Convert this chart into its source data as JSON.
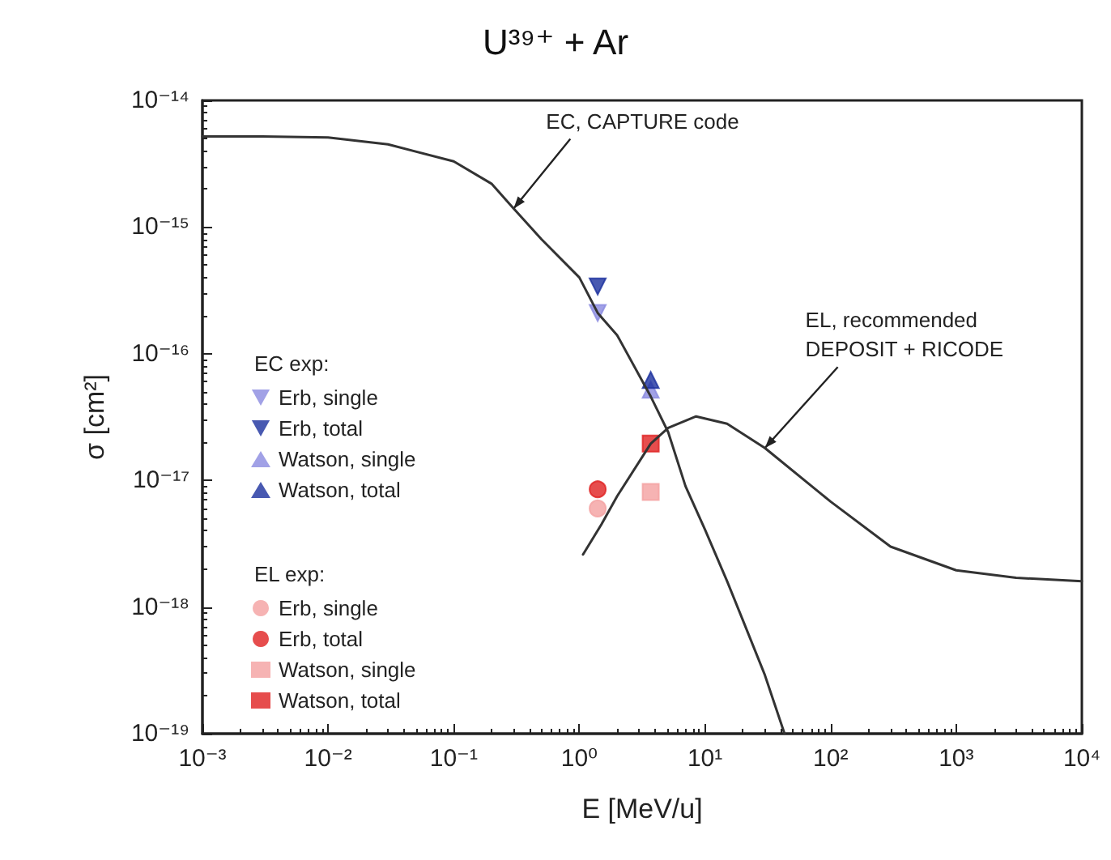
{
  "chart_data": {
    "type": "scatter",
    "title": "U³⁹⁺ + Ar",
    "xlabel": "E [MeV/u]",
    "ylabel": "σ [cm²]",
    "log": "xy",
    "xlim": [
      0.001,
      10000
    ],
    "xticks": [
      {
        "value": 0.001,
        "label": "10⁻³"
      },
      {
        "value": 0.01,
        "label": "10⁻²"
      },
      {
        "value": 0.1,
        "label": "10⁻¹"
      },
      {
        "value": 1,
        "label": "10⁰"
      },
      {
        "value": 10,
        "label": "10¹"
      },
      {
        "value": 100,
        "label": "10²"
      },
      {
        "value": 1000,
        "label": "10³"
      },
      {
        "value": 10000,
        "label": "10⁴"
      }
    ],
    "ylim": [
      1e-19,
      1e-14
    ],
    "yticks": [
      {
        "value": 1e-19,
        "label": "10⁻¹⁹"
      },
      {
        "value": 1e-18,
        "label": "10⁻¹⁸"
      },
      {
        "value": 1e-17,
        "label": "10⁻¹⁷"
      },
      {
        "value": 1e-16,
        "label": "10⁻¹⁶"
      },
      {
        "value": 1e-15,
        "label": "10⁻¹⁵"
      },
      {
        "value": 1e-14,
        "label": "10⁻¹⁴"
      }
    ],
    "grid": false,
    "legend": "left",
    "annotations": [
      "EC exp:",
      "EL exp:",
      {
        "text": "EC, CAPTURE code",
        "x": 0.3,
        "y": 1.4e-15
      },
      {
        "text": "EL, recommended\nDEPOSIT + RICODE",
        "x": 30,
        "y": 1.8e-17
      }
    ],
    "series": [
      {
        "name": "Erb, single",
        "color": "#8a8ae0",
        "marker": "triangle-down",
        "x": [
          1.4
        ],
        "values": [
          2.1e-16
        ]
      },
      {
        "name": "Erb, total",
        "color": "#1a2f9e",
        "marker": "triangle-down",
        "x": [
          1.4
        ],
        "values": [
          3.4e-16
        ]
      },
      {
        "name": "Watson, single",
        "color": "#8a8ae0",
        "marker": "triangle",
        "x": [
          3.7
        ],
        "values": [
          5.2e-17
        ]
      },
      {
        "name": "Watson, total",
        "color": "#1a2f9e",
        "marker": "triangle",
        "x": [
          3.7
        ],
        "values": [
          6.2e-17
        ]
      },
      {
        "name": "Erb, single",
        "color": "#f4a0a0",
        "marker": "circle",
        "x": [
          1.4
        ],
        "values": [
          6e-18
        ]
      },
      {
        "name": "Erb, total",
        "color": "#e02020",
        "marker": "circle",
        "x": [
          1.4
        ],
        "values": [
          8.5e-18
        ]
      },
      {
        "name": "Watson, single",
        "color": "#f4a0a0",
        "marker": "square",
        "x": [
          3.7
        ],
        "values": [
          8.1e-18
        ]
      },
      {
        "name": "Watson, total",
        "color": "#e02020",
        "marker": "square",
        "x": [
          3.7
        ],
        "values": [
          1.95e-17
        ]
      },
      {
        "type": "line",
        "color": "#333333",
        "marker": "none",
        "x": [
          0.001,
          0.003,
          0.01,
          0.03,
          0.1,
          0.2,
          0.3,
          0.5,
          1,
          1.4,
          2,
          3.7,
          5.1,
          7,
          10,
          15,
          20,
          30,
          43
        ],
        "values": [
          5.2e-15,
          5.2e-15,
          5.1e-15,
          4.5e-15,
          3.3e-15,
          2.2e-15,
          1.4e-15,
          8e-16,
          4e-16,
          2.1e-16,
          1.4e-16,
          4.6e-17,
          2.4e-17,
          9e-18,
          4.1e-18,
          1.6e-18,
          7.9e-19,
          2.9e-19,
          1e-19
        ]
      },
      {
        "type": "line",
        "color": "#333333",
        "marker": "none",
        "x": [
          1.07,
          1.5,
          2,
          3.7,
          5.1,
          8.5,
          15,
          30,
          100,
          300,
          1000,
          3000,
          10000
        ],
        "values": [
          2.6e-18,
          4.5e-18,
          7.5e-18,
          1.95e-17,
          2.6e-17,
          3.2e-17,
          2.8e-17,
          1.8e-17,
          6.8e-18,
          3e-18,
          1.95e-18,
          1.7e-18,
          1.6e-18
        ]
      }
    ]
  }
}
